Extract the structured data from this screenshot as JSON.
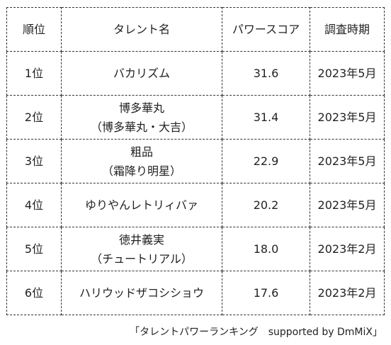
{
  "table": {
    "headers": {
      "rank": "順位",
      "name": "タレント名",
      "score": "パワースコア",
      "period": "調査時期"
    },
    "rows": [
      {
        "rank": "1位",
        "name": "バカリズム",
        "name_sub": "",
        "score": "31.6",
        "period": "2023年5月"
      },
      {
        "rank": "2位",
        "name": "博多華丸",
        "name_sub": "（博多華丸・大吉）",
        "score": "31.4",
        "period": "2023年5月"
      },
      {
        "rank": "3位",
        "name": "粗品",
        "name_sub": "（霜降り明星）",
        "score": "22.9",
        "period": "2023年5月"
      },
      {
        "rank": "4位",
        "name": "ゆりやんレトリィバァ",
        "name_sub": "",
        "score": "20.2",
        "period": "2023年5月"
      },
      {
        "rank": "5位",
        "name": "徳井義実",
        "name_sub": "（チュートリアル）",
        "score": "18.0",
        "period": "2023年2月"
      },
      {
        "rank": "6位",
        "name": "ハリウッドザコシショウ",
        "name_sub": "",
        "score": "17.6",
        "period": "2023年2月"
      }
    ]
  },
  "source": "「タレントパワーランキング　supported by DmMiX」"
}
